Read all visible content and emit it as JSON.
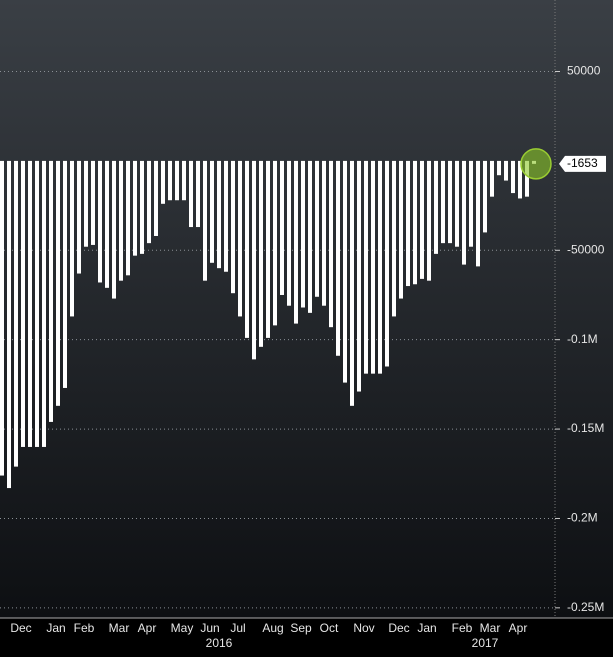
{
  "chart_data": {
    "type": "bar",
    "categories": [
      null,
      null,
      "Dec",
      null,
      null,
      null,
      null,
      "Jan",
      null,
      null,
      null,
      "Feb",
      null,
      null,
      null,
      null,
      "Mar",
      null,
      null,
      null,
      "Apr",
      null,
      null,
      null,
      null,
      "May",
      null,
      null,
      null,
      "Jun",
      null,
      null,
      null,
      "Jul",
      null,
      null,
      null,
      null,
      "Aug",
      null,
      null,
      null,
      "Sep",
      null,
      null,
      null,
      "Oct",
      null,
      null,
      null,
      null,
      "Nov",
      null,
      null,
      null,
      null,
      "Dec",
      null,
      null,
      null,
      "Jan",
      null,
      null,
      null,
      null,
      "Feb",
      null,
      null,
      null,
      "Mar",
      null,
      null,
      null,
      "Apr",
      null,
      null,
      null
    ],
    "year_categories": [
      null,
      null,
      null,
      null,
      null,
      null,
      null,
      null,
      null,
      null,
      null,
      null,
      null,
      null,
      null,
      null,
      null,
      null,
      null,
      null,
      null,
      null,
      null,
      null,
      null,
      null,
      null,
      null,
      null,
      null,
      null,
      "2016",
      null,
      null,
      null,
      null,
      null,
      null,
      null,
      null,
      null,
      null,
      null,
      null,
      null,
      null,
      null,
      null,
      null,
      null,
      null,
      null,
      null,
      null,
      null,
      null,
      null,
      null,
      null,
      null,
      null,
      null,
      null,
      null,
      null,
      null,
      null,
      null,
      null,
      "2017",
      null,
      null,
      null,
      null,
      null,
      null,
      null
    ],
    "values": [
      -176000,
      -183000,
      -171000,
      -160000,
      -160000,
      -160000,
      -160000,
      -146000,
      -137000,
      -127000,
      -87000,
      -63000,
      -48000,
      -47000,
      -68000,
      -71000,
      -77000,
      -67000,
      -64000,
      -53000,
      -52000,
      -46000,
      -42000,
      -24000,
      -22000,
      -22000,
      -22000,
      -37000,
      -37000,
      -67000,
      -57000,
      -60000,
      -62000,
      -74000,
      -87000,
      -99000,
      -111000,
      -104000,
      -99000,
      -92000,
      -75000,
      -81000,
      -91000,
      -82000,
      -85000,
      -76000,
      -81000,
      -93000,
      -109000,
      -124000,
      -137000,
      -129000,
      -119000,
      -119000,
      -119000,
      -115000,
      -87000,
      -77000,
      -70000,
      -69000,
      -66000,
      -67000,
      -52000,
      -46000,
      -46000,
      -48000,
      -58000,
      -48000,
      -59000,
      -40000,
      -20000,
      -8000,
      -11000,
      -18000,
      -21000,
      -20000,
      -1653
    ],
    "color": "#ffffff",
    "ylim": [
      -254000,
      90000
    ],
    "yticks": [
      50000,
      -50000,
      {
        "value": -100000,
        "label": "-0.1M"
      },
      {
        "value": -150000,
        "label": "-0.15M"
      },
      {
        "value": -200000,
        "label": "-0.2M"
      },
      {
        "value": -250000,
        "label": "-0.25M"
      }
    ],
    "grid": true
  }
}
